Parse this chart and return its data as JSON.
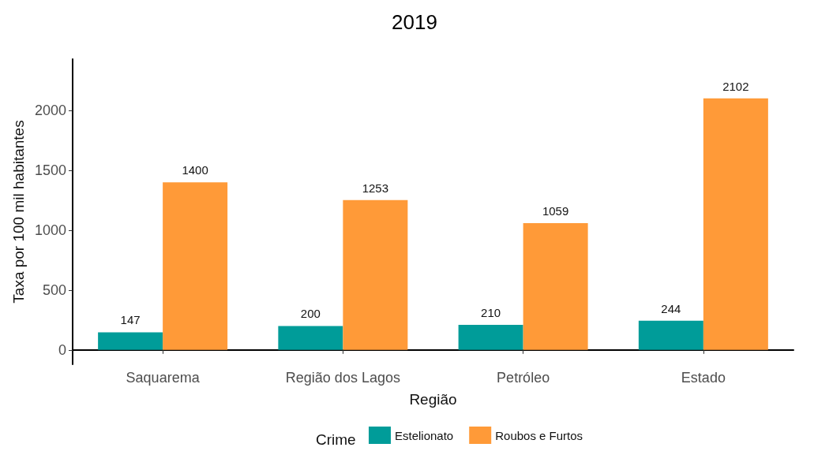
{
  "chart_data": {
    "type": "bar",
    "title": "2019",
    "xlabel": "Região",
    "ylabel": "Taxa por 100 mil habitantes",
    "legend_title": "Crime",
    "categories": [
      "Saquarema",
      "Região dos Lagos",
      "Petróleo",
      "Estado"
    ],
    "series": [
      {
        "name": "Estelionato",
        "color": "#009c99",
        "values": [
          147,
          200,
          210,
          244
        ]
      },
      {
        "name": "Roubos e Furtos",
        "color": "#ff9a38",
        "values": [
          1400,
          1253,
          1059,
          2102
        ]
      }
    ],
    "ylim": [
      -120,
      2430
    ],
    "yticks": [
      0,
      500,
      1000,
      1500,
      2000
    ],
    "grid": false,
    "legend": "bottom",
    "data_labels": true
  }
}
